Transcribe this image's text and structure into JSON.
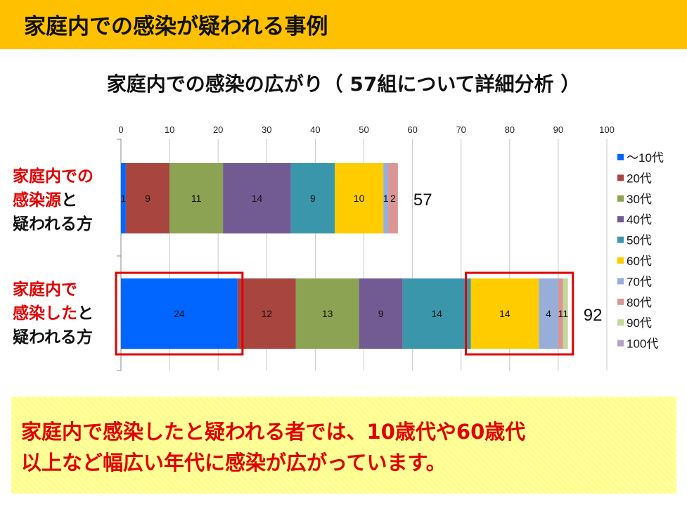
{
  "header": {
    "title": "家庭内での感染が疑われる事例"
  },
  "chart_data": {
    "type": "bar",
    "orientation": "horizontal",
    "stacked": true,
    "title": "家庭内での感染の広がり（ 57組について詳細分析 ）",
    "xlim": [
      0,
      100
    ],
    "xticks": [
      0,
      10,
      20,
      30,
      40,
      50,
      60,
      70,
      80,
      90,
      100
    ],
    "categories": [
      {
        "key": "source",
        "label_lines": [
          [
            "家庭内での"
          ],
          [
            "感染源",
            "と"
          ],
          [
            "疑われる方"
          ]
        ],
        "total": 57
      },
      {
        "key": "infected",
        "label_lines": [
          [
            "家庭内で"
          ],
          [
            "感染した",
            "と"
          ],
          [
            "疑われる方"
          ]
        ],
        "total": 92
      }
    ],
    "series": [
      {
        "name": "～10代",
        "color": "#0066FF",
        "values": [
          1,
          24
        ],
        "labels": [
          "1",
          "24"
        ]
      },
      {
        "name": "20代",
        "color": "#A8453F",
        "values": [
          9,
          12
        ],
        "labels": [
          "9",
          "12"
        ]
      },
      {
        "name": "30代",
        "color": "#8BA352",
        "values": [
          11,
          13
        ],
        "labels": [
          "11",
          "13"
        ]
      },
      {
        "name": "40代",
        "color": "#725B92",
        "values": [
          14,
          9
        ],
        "labels": [
          "14",
          "9"
        ]
      },
      {
        "name": "50代",
        "color": "#3A97AB",
        "values": [
          9,
          14
        ],
        "labels": [
          "9",
          "14"
        ]
      },
      {
        "name": "60代",
        "color": "#FFCC00",
        "values": [
          10,
          14
        ],
        "labels": [
          "10",
          "14"
        ]
      },
      {
        "name": "70代",
        "color": "#97AFD8",
        "values": [
          1,
          4
        ],
        "labels": [
          "1",
          "4"
        ]
      },
      {
        "name": "80代",
        "color": "#D99694",
        "values": [
          2,
          1
        ],
        "labels": [
          "2",
          "1"
        ]
      },
      {
        "name": "90代",
        "color": "#C4D79B",
        "values": [
          0,
          1
        ],
        "labels": [
          "",
          "1"
        ]
      },
      {
        "name": "100代",
        "color": "#B3A2C7",
        "values": [
          0,
          0
        ],
        "labels": [
          "",
          ""
        ]
      }
    ],
    "highlights": [
      {
        "category": "infected",
        "from": 0,
        "to": 24
      },
      {
        "category": "infected",
        "from": 72,
        "to": 92
      }
    ],
    "legend_position": "right",
    "grid": true
  },
  "callout": {
    "lines": [
      "家庭内で感染したと疑われる者では、10歳代や60歳代",
      "以上など幅広い年代に感染が広がっています。"
    ]
  }
}
